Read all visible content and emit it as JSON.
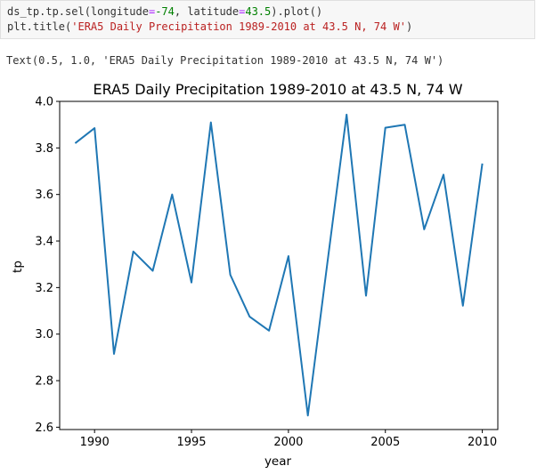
{
  "code_cell": {
    "line1": {
      "prefix": "ds_tp.tp.sel(longitude",
      "eq1": "=",
      "minus": "-74",
      "mid": ", latitude",
      "eq2": "=",
      "num": "43.5",
      "suffix": ").plot()"
    },
    "line2": {
      "prefix": "plt.title(",
      "str": "'ERA5 Daily Precipitation 1989-2010 at 43.5 N, 74 W'",
      "suffix": ")"
    }
  },
  "output_text": "Text(0.5, 1.0, 'ERA5 Daily Precipitation 1989-2010 at 43.5 N, 74 W')",
  "chart_data": {
    "type": "line",
    "title": "ERA5 Daily Precipitation 1989-2010 at 43.5 N, 74 W",
    "xlabel": "year",
    "ylabel": "tp",
    "xlim": [
      1988.2,
      2010.8
    ],
    "ylim": [
      2.59,
      4.0
    ],
    "xticks": [
      1990,
      1995,
      2000,
      2005,
      2010
    ],
    "xtick_labels": [
      "1990",
      "1995",
      "2000",
      "2005",
      "2010"
    ],
    "yticks": [
      2.6,
      2.8,
      3.0,
      3.2,
      3.4,
      3.6,
      3.8,
      4.0
    ],
    "ytick_labels": [
      "2.6",
      "2.8",
      "3.0",
      "3.2",
      "3.4",
      "3.6",
      "3.8",
      "4.0"
    ],
    "line_color": "#1f77b4",
    "grid": false,
    "series": [
      {
        "x": [
          1989,
          1990,
          1991,
          1992,
          1993,
          1994,
          1995,
          1996,
          1997,
          1998,
          1999,
          2000,
          2001,
          2002,
          2003,
          2004,
          2005,
          2006,
          2007,
          2008,
          2009,
          2010
        ],
        "y": [
          3.82,
          3.885,
          2.915,
          3.355,
          3.272,
          3.6,
          3.222,
          3.91,
          3.255,
          3.075,
          3.015,
          3.335,
          2.65,
          3.3,
          3.943,
          3.165,
          3.887,
          3.9,
          3.45,
          3.685,
          3.122,
          3.733
        ]
      }
    ]
  }
}
